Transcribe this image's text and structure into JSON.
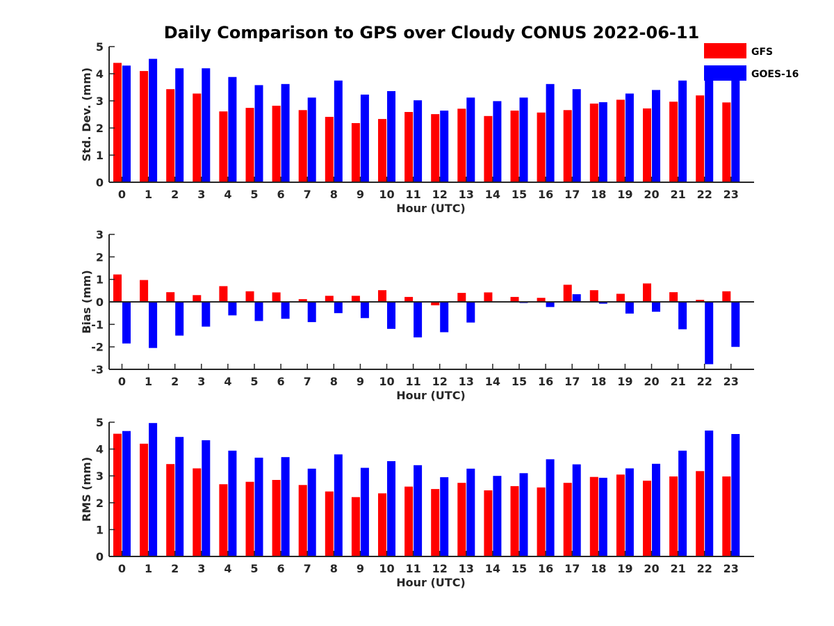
{
  "figure": {
    "title": "Daily Comparison to GPS over Cloudy CONUS 2022-06-11"
  },
  "colors": {
    "GFS": "#ff0000",
    "GOES-16": "#0000ff"
  },
  "legend": {
    "placement": "top-right",
    "entries": [
      "GFS",
      "GOES-16"
    ]
  },
  "chart_data": [
    {
      "type": "bar",
      "categories": [
        "0",
        "1",
        "2",
        "3",
        "4",
        "5",
        "6",
        "7",
        "8",
        "9",
        "10",
        "11",
        "12",
        "13",
        "14",
        "15",
        "16",
        "17",
        "18",
        "19",
        "20",
        "21",
        "22",
        "23"
      ],
      "xlabel": "Hour (UTC)",
      "ylabel": "Std. Dev. (mm)",
      "ylim": [
        0,
        5
      ],
      "yticks": [
        "0",
        "1",
        "2",
        "3",
        "4",
        "5"
      ],
      "series": [
        {
          "name": "GFS",
          "values": [
            4.4,
            4.1,
            3.43,
            3.27,
            2.61,
            2.74,
            2.82,
            2.66,
            2.41,
            2.18,
            2.33,
            2.59,
            2.51,
            2.71,
            2.44,
            2.64,
            2.57,
            2.66,
            2.9,
            3.04,
            2.72,
            2.97,
            3.2,
            2.94
          ]
        },
        {
          "name": "GOES-16",
          "values": [
            4.3,
            4.55,
            4.2,
            4.2,
            3.88,
            3.58,
            3.62,
            3.12,
            3.75,
            3.23,
            3.36,
            3.02,
            2.64,
            3.12,
            2.99,
            3.12,
            3.62,
            3.43,
            2.95,
            3.27,
            3.4,
            3.75,
            3.75,
            3.79
          ]
        }
      ]
    },
    {
      "type": "bar",
      "categories": [
        "0",
        "1",
        "2",
        "3",
        "4",
        "5",
        "6",
        "7",
        "8",
        "9",
        "10",
        "11",
        "12",
        "13",
        "14",
        "15",
        "16",
        "17",
        "18",
        "19",
        "20",
        "21",
        "22",
        "23"
      ],
      "xlabel": "Hour (UTC)",
      "ylabel": "Bias (mm)",
      "ylim": [
        -3,
        3
      ],
      "yticks": [
        "-3",
        "-2",
        "-1",
        "0",
        "1",
        "2",
        "3"
      ],
      "series": [
        {
          "name": "GFS",
          "values": [
            1.22,
            0.97,
            0.43,
            0.3,
            0.7,
            0.47,
            0.42,
            0.12,
            0.27,
            0.27,
            0.52,
            0.22,
            -0.15,
            0.4,
            0.42,
            0.22,
            0.18,
            0.76,
            0.52,
            0.36,
            0.82,
            0.43,
            0.09,
            0.47
          ]
        },
        {
          "name": "GOES-16",
          "values": [
            -1.85,
            -2.05,
            -1.5,
            -1.1,
            -0.6,
            -0.85,
            -0.75,
            -0.9,
            -0.5,
            -0.72,
            -1.2,
            -1.58,
            -1.35,
            -0.92,
            0.0,
            -0.05,
            -0.23,
            0.34,
            -0.08,
            -0.52,
            -0.44,
            -1.22,
            -2.77,
            -2.0
          ]
        }
      ]
    },
    {
      "type": "bar",
      "categories": [
        "0",
        "1",
        "2",
        "3",
        "4",
        "5",
        "6",
        "7",
        "8",
        "9",
        "10",
        "11",
        "12",
        "13",
        "14",
        "15",
        "16",
        "17",
        "18",
        "19",
        "20",
        "21",
        "22",
        "23"
      ],
      "xlabel": "Hour (UTC)",
      "ylabel": "RMS (mm)",
      "ylim": [
        0,
        5
      ],
      "yticks": [
        "0",
        "1",
        "2",
        "3",
        "4",
        "5"
      ],
      "series": [
        {
          "name": "GFS",
          "values": [
            4.57,
            4.2,
            3.44,
            3.28,
            2.69,
            2.78,
            2.85,
            2.66,
            2.42,
            2.21,
            2.35,
            2.6,
            2.51,
            2.74,
            2.46,
            2.62,
            2.57,
            2.74,
            2.96,
            3.05,
            2.82,
            2.98,
            3.18,
            2.98
          ]
        },
        {
          "name": "GOES-16",
          "values": [
            4.67,
            4.97,
            4.45,
            4.33,
            3.94,
            3.68,
            3.7,
            3.27,
            3.8,
            3.3,
            3.55,
            3.4,
            2.95,
            3.27,
            3.0,
            3.1,
            3.62,
            3.43,
            2.93,
            3.28,
            3.45,
            3.94,
            4.69,
            4.56
          ]
        }
      ]
    }
  ]
}
